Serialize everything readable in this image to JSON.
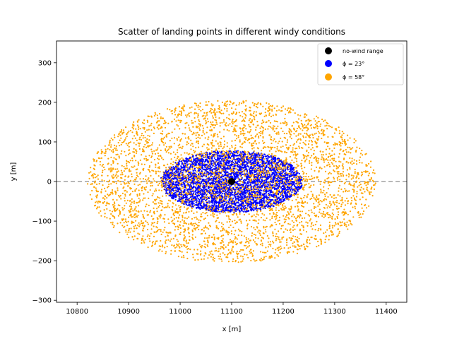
{
  "chart_data": {
    "type": "scatter",
    "title": "Scatter of landing points in different windy conditions",
    "xlabel": "x [m]",
    "ylabel": "y [m]",
    "xlim": [
      10760,
      11440
    ],
    "ylim": [
      -305,
      355
    ],
    "xticks": [
      10800,
      10900,
      11000,
      11100,
      11200,
      11300,
      11400
    ],
    "yticks": [
      -300,
      -200,
      -100,
      0,
      100,
      200,
      300
    ],
    "xtick_labels": [
      "10800",
      "10900",
      "11000",
      "11100",
      "11200",
      "11300",
      "11400"
    ],
    "ytick_labels": [
      "−300",
      "−200",
      "−100",
      "0",
      "100",
      "200",
      "300"
    ],
    "grid": false,
    "legend_position": "top-right",
    "reference_line": {
      "y": 0,
      "style": "dashed",
      "color": "#a0a0a0"
    },
    "series": [
      {
        "name": "φ = 58°",
        "legend_label": "ϕ = 58°",
        "color": "#ffa500",
        "distribution": "uniform-ellipse",
        "center": [
          11100,
          0
        ],
        "radius": [
          280,
          205
        ],
        "count": 4000,
        "zorder": 1
      },
      {
        "name": "φ = 23°",
        "legend_label": "ϕ = 23°",
        "color": "#0000ff",
        "distribution": "uniform-ellipse",
        "center": [
          11100,
          0
        ],
        "radius": [
          138,
          78
        ],
        "count": 3500,
        "zorder": 2
      },
      {
        "name": "φ = 58° (overlap)",
        "color": "#ffa500",
        "distribution": "uniform-ellipse",
        "center": [
          11100,
          0
        ],
        "radius": [
          138,
          78
        ],
        "count": 600,
        "zorder": 3
      },
      {
        "name": "no-wind range",
        "legend_label": "no-wind range",
        "color": "#000000",
        "points": [
          [
            11100,
            0
          ]
        ],
        "zorder": 4
      }
    ]
  }
}
